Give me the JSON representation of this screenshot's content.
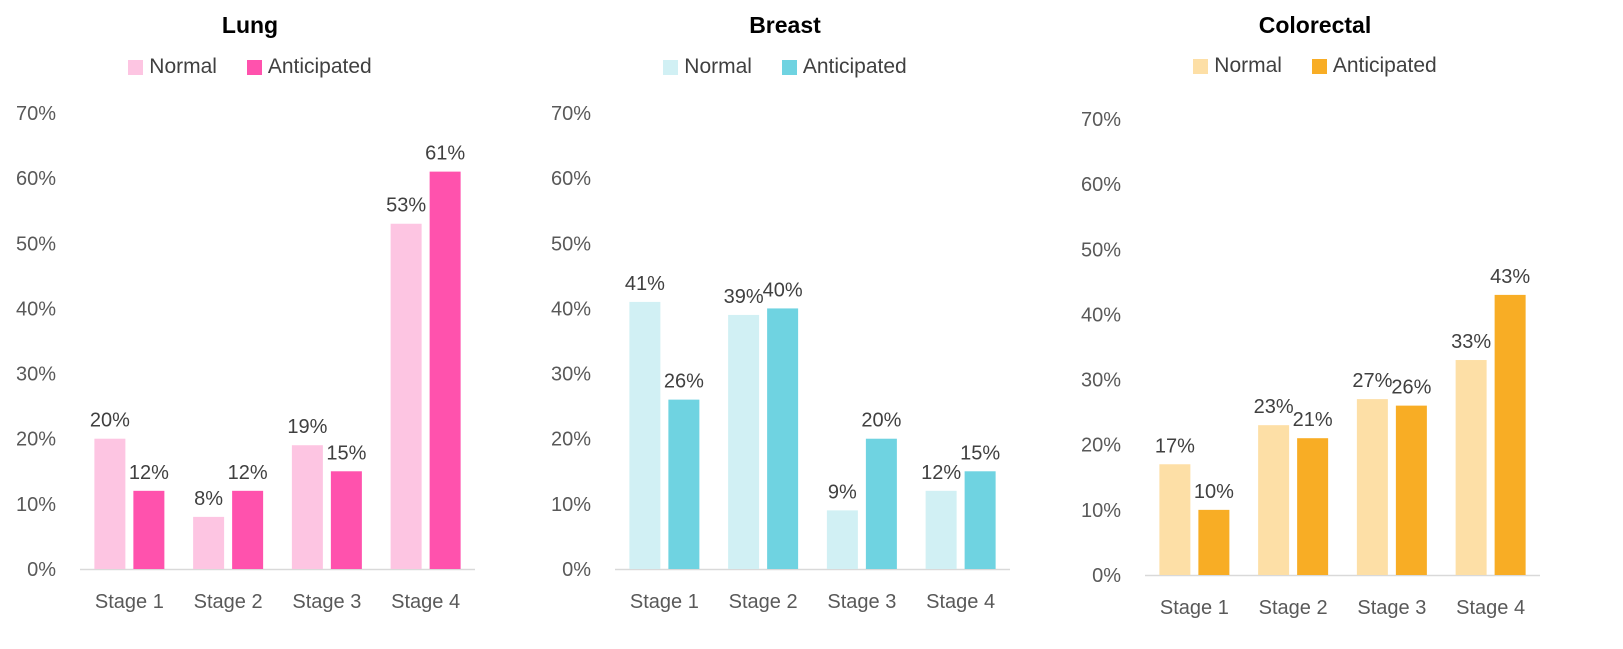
{
  "chart_data": [
    {
      "type": "bar",
      "title": "Lung",
      "categories": [
        "Stage 1",
        "Stage 2",
        "Stage 3",
        "Stage 4"
      ],
      "series": [
        {
          "name": "Normal",
          "values": [
            20,
            8,
            19,
            53
          ],
          "labels": [
            "20%",
            "8%",
            "19%",
            "53%"
          ],
          "color": "#FDC5E2"
        },
        {
          "name": "Anticipated",
          "values": [
            12,
            12,
            15,
            61
          ],
          "labels": [
            "12%",
            "12%",
            "15%",
            "61%"
          ],
          "color": "#FF52AD"
        }
      ],
      "yticks": [
        "0%",
        "10%",
        "20%",
        "30%",
        "40%",
        "50%",
        "60%",
        "70%"
      ],
      "ylim": [
        0,
        70
      ],
      "xlabel": "",
      "ylabel": "",
      "grid": false,
      "legend_position": "top"
    },
    {
      "type": "bar",
      "title": "Breast",
      "categories": [
        "Stage 1",
        "Stage 2",
        "Stage 3",
        "Stage 4"
      ],
      "series": [
        {
          "name": "Normal",
          "values": [
            41,
            39,
            9,
            12
          ],
          "labels": [
            "41%",
            "39%",
            "9%",
            "12%"
          ],
          "color": "#D1F0F4"
        },
        {
          "name": "Anticipated",
          "values": [
            26,
            40,
            20,
            15
          ],
          "labels": [
            "26%",
            "40%",
            "20%",
            "15%"
          ],
          "color": "#6FD3E1"
        }
      ],
      "yticks": [
        "0%",
        "10%",
        "20%",
        "30%",
        "40%",
        "50%",
        "60%",
        "70%"
      ],
      "ylim": [
        0,
        70
      ],
      "xlabel": "",
      "ylabel": "",
      "grid": false,
      "legend_position": "top"
    },
    {
      "type": "bar",
      "title": "Colorectal",
      "categories": [
        "Stage 1",
        "Stage 2",
        "Stage 3",
        "Stage 4"
      ],
      "series": [
        {
          "name": "Normal",
          "values": [
            17,
            23,
            27,
            33
          ],
          "labels": [
            "17%",
            "23%",
            "27%",
            "33%"
          ],
          "color": "#FDDFA6"
        },
        {
          "name": "Anticipated",
          "values": [
            10,
            21,
            26,
            43
          ],
          "labels": [
            "10%",
            "21%",
            "26%",
            "43%"
          ],
          "color": "#F8AD25"
        }
      ],
      "yticks": [
        "0%",
        "10%",
        "20%",
        "30%",
        "40%",
        "50%",
        "60%",
        "70%"
      ],
      "ylim": [
        0,
        70
      ],
      "xlabel": "",
      "ylabel": "",
      "grid": false,
      "legend_position": "top"
    }
  ]
}
